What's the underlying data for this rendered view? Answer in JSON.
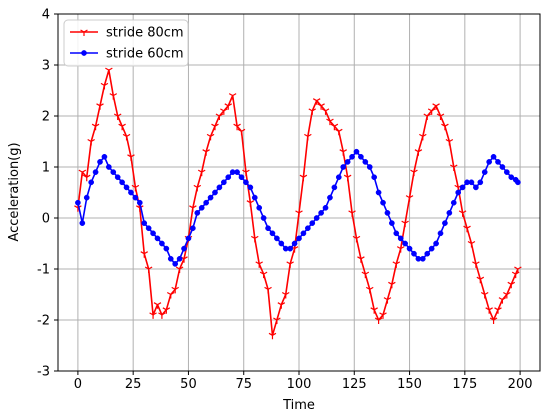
{
  "chart_data": {
    "type": "line",
    "xlabel": "Time",
    "ylabel": "Acceleration(g)",
    "xlim": [
      -9,
      209
    ],
    "ylim": [
      -3,
      4
    ],
    "x_ticks": [
      0,
      25,
      50,
      75,
      100,
      125,
      150,
      175,
      200
    ],
    "y_ticks": [
      -3,
      -2,
      -1,
      0,
      1,
      2,
      3,
      4
    ],
    "grid": true,
    "legend_position": "top-left",
    "series": [
      {
        "name": "stride 80cm",
        "color": "#ff0000",
        "marker": "tri_down",
        "x": [
          0,
          2,
          4,
          6,
          8,
          10,
          12,
          14,
          16,
          18,
          20,
          22,
          24,
          26,
          28,
          30,
          32,
          34,
          36,
          38,
          40,
          42,
          44,
          46,
          48,
          50,
          52,
          54,
          56,
          58,
          60,
          62,
          64,
          66,
          68,
          70,
          72,
          74,
          76,
          78,
          80,
          82,
          84,
          86,
          88,
          90,
          92,
          94,
          96,
          98,
          100,
          102,
          104,
          106,
          108,
          110,
          112,
          114,
          116,
          118,
          120,
          122,
          124,
          126,
          128,
          130,
          132,
          134,
          136,
          138,
          140,
          142,
          144,
          146,
          148,
          150,
          152,
          154,
          156,
          158,
          160,
          162,
          164,
          166,
          168,
          170,
          172,
          174,
          176,
          178,
          180,
          182,
          184,
          186,
          188,
          190,
          192,
          194,
          196,
          198,
          199
        ],
        "y": [
          0.2,
          0.9,
          0.8,
          1.5,
          1.8,
          2.2,
          2.6,
          2.9,
          2.4,
          2.0,
          1.8,
          1.6,
          1.2,
          0.6,
          0.2,
          -0.7,
          -1.0,
          -1.9,
          -1.7,
          -1.9,
          -1.8,
          -1.5,
          -1.4,
          -1.0,
          -0.8,
          -0.4,
          0.2,
          0.6,
          0.9,
          1.3,
          1.6,
          1.8,
          2.0,
          2.1,
          2.2,
          2.4,
          1.8,
          1.7,
          0.9,
          0.3,
          -0.4,
          -0.9,
          -1.1,
          -1.4,
          -2.3,
          -2.0,
          -1.7,
          -1.5,
          -0.9,
          -0.6,
          0.1,
          0.8,
          1.6,
          2.1,
          2.3,
          2.2,
          2.1,
          1.9,
          1.8,
          1.7,
          1.3,
          0.8,
          0.1,
          -0.4,
          -0.8,
          -1.1,
          -1.4,
          -1.8,
          -2.0,
          -1.9,
          -1.6,
          -1.3,
          -0.9,
          -0.6,
          -0.1,
          0.4,
          0.9,
          1.3,
          1.6,
          2.0,
          2.1,
          2.2,
          2.0,
          1.8,
          1.5,
          1.0,
          0.6,
          0.1,
          -0.2,
          -0.5,
          -0.9,
          -1.2,
          -1.5,
          -1.8,
          -2.0,
          -1.8,
          -1.6,
          -1.5,
          -1.3,
          -1.1,
          -1.0
        ]
      },
      {
        "name": "stride 60cm",
        "color": "#0000ff",
        "marker": "circle",
        "x": [
          0,
          2,
          4,
          6,
          8,
          10,
          12,
          14,
          16,
          18,
          20,
          22,
          24,
          26,
          28,
          30,
          32,
          34,
          36,
          38,
          40,
          42,
          44,
          46,
          48,
          50,
          52,
          54,
          56,
          58,
          60,
          62,
          64,
          66,
          68,
          70,
          72,
          74,
          76,
          78,
          80,
          82,
          84,
          86,
          88,
          90,
          92,
          94,
          96,
          98,
          100,
          102,
          104,
          106,
          108,
          110,
          112,
          114,
          116,
          118,
          120,
          122,
          124,
          126,
          128,
          130,
          132,
          134,
          136,
          138,
          140,
          142,
          144,
          146,
          148,
          150,
          152,
          154,
          156,
          158,
          160,
          162,
          164,
          166,
          168,
          170,
          172,
          174,
          176,
          178,
          180,
          182,
          184,
          186,
          188,
          190,
          192,
          194,
          196,
          198,
          199
        ],
        "y": [
          0.3,
          -0.1,
          0.4,
          0.7,
          0.9,
          1.1,
          1.2,
          1.0,
          0.9,
          0.8,
          0.7,
          0.6,
          0.5,
          0.4,
          0.3,
          -0.1,
          -0.2,
          -0.3,
          -0.4,
          -0.5,
          -0.6,
          -0.8,
          -0.9,
          -0.8,
          -0.6,
          -0.4,
          -0.2,
          0.1,
          0.2,
          0.3,
          0.4,
          0.5,
          0.6,
          0.7,
          0.8,
          0.9,
          0.9,
          0.8,
          0.7,
          0.6,
          0.4,
          0.2,
          0.0,
          -0.2,
          -0.3,
          -0.4,
          -0.5,
          -0.6,
          -0.6,
          -0.5,
          -0.4,
          -0.3,
          -0.2,
          -0.1,
          0.0,
          0.1,
          0.2,
          0.4,
          0.6,
          0.8,
          1.0,
          1.1,
          1.2,
          1.3,
          1.2,
          1.1,
          1.0,
          0.8,
          0.5,
          0.3,
          0.1,
          -0.1,
          -0.3,
          -0.4,
          -0.5,
          -0.6,
          -0.7,
          -0.8,
          -0.8,
          -0.7,
          -0.6,
          -0.5,
          -0.3,
          -0.1,
          0.1,
          0.3,
          0.5,
          0.6,
          0.7,
          0.7,
          0.6,
          0.7,
          0.9,
          1.1,
          1.2,
          1.1,
          1.0,
          0.9,
          0.8,
          0.75,
          0.7
        ]
      }
    ]
  }
}
